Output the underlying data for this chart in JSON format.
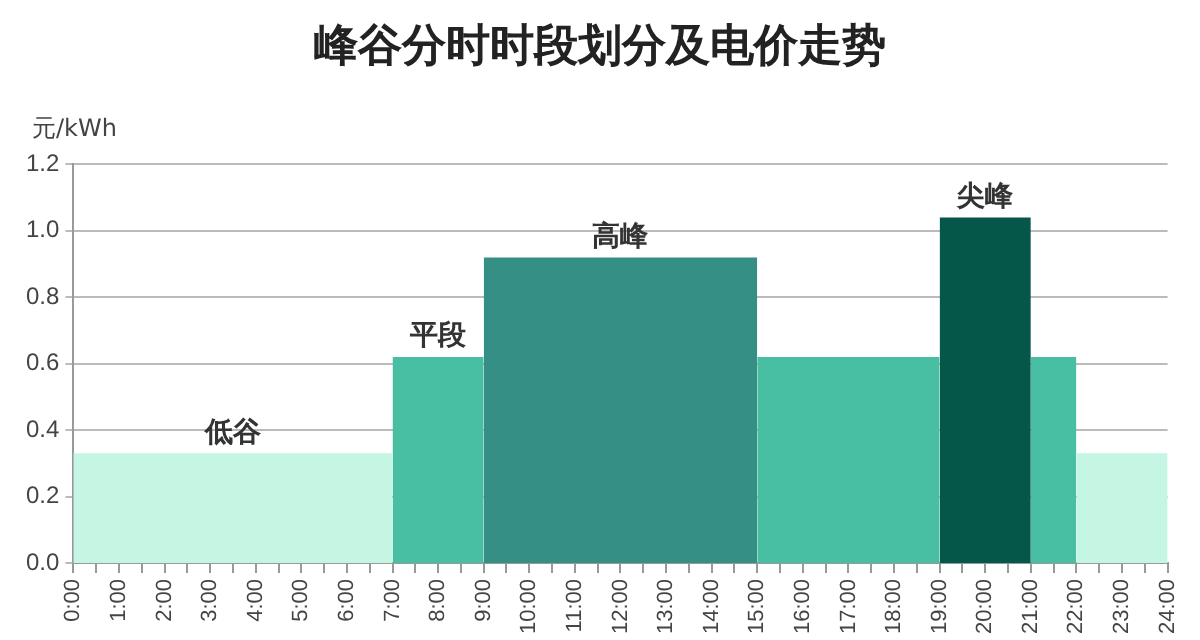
{
  "chart_data": {
    "type": "area",
    "title": "峰谷分时时段划分及电价走势",
    "ylabel": "元/kWh",
    "series": [
      {
        "name": "低谷",
        "color": "#c5f5e3",
        "x": [
          0,
          7
        ],
        "values": [
          0.33,
          0.33
        ]
      },
      {
        "color": "#c5f5e3",
        "x": [
          22,
          24
        ],
        "values": [
          0.33,
          0.33
        ]
      },
      {
        "name": "平段",
        "color": "#48bfa3",
        "x": [
          7,
          9
        ],
        "values": [
          0.62,
          0.62
        ]
      },
      {
        "color": "#48bfa3",
        "x": [
          15,
          19
        ],
        "values": [
          0.62,
          0.62
        ]
      },
      {
        "color": "#48bfa3",
        "x": [
          21,
          22
        ],
        "values": [
          0.62,
          0.62
        ]
      },
      {
        "name": "高峰",
        "color": "#358f85",
        "x": [
          9,
          15
        ],
        "values": [
          0.92,
          0.92
        ]
      },
      {
        "name": "尖峰",
        "color": "#05574a",
        "x": [
          19,
          21
        ],
        "values": [
          1.04,
          1.04
        ]
      }
    ],
    "xlim": [
      0,
      24
    ],
    "xticks": [
      {
        "value": 0,
        "label": "0:00"
      },
      {
        "value": 0.5,
        "label": null
      },
      {
        "value": 1,
        "label": "1:00"
      },
      {
        "value": 1.5,
        "label": null
      },
      {
        "value": 2,
        "label": "2:00"
      },
      {
        "value": 2.5,
        "label": null
      },
      {
        "value": 3,
        "label": "3:00"
      },
      {
        "value": 3.5,
        "label": null
      },
      {
        "value": 4,
        "label": "4:00"
      },
      {
        "value": 4.5,
        "label": null
      },
      {
        "value": 5,
        "label": "5:00"
      },
      {
        "value": 5.5,
        "label": null
      },
      {
        "value": 6,
        "label": "6:00"
      },
      {
        "value": 6.5,
        "label": null
      },
      {
        "value": 7,
        "label": "7:00"
      },
      {
        "value": 7.5,
        "label": null
      },
      {
        "value": 8,
        "label": "8:00"
      },
      {
        "value": 8.5,
        "label": null
      },
      {
        "value": 9,
        "label": "9:00"
      },
      {
        "value": 9.5,
        "label": null
      },
      {
        "value": 10,
        "label": "10:00"
      },
      {
        "value": 10.5,
        "label": null
      },
      {
        "value": 11,
        "label": "11:00"
      },
      {
        "value": 11.5,
        "label": null
      },
      {
        "value": 12,
        "label": "12:00"
      },
      {
        "value": 12.5,
        "label": null
      },
      {
        "value": 13,
        "label": "13:00"
      },
      {
        "value": 13.5,
        "label": null
      },
      {
        "value": 14,
        "label": "14:00"
      },
      {
        "value": 14.5,
        "label": null
      },
      {
        "value": 15,
        "label": "15:00"
      },
      {
        "value": 15.5,
        "label": null
      },
      {
        "value": 16,
        "label": "16:00"
      },
      {
        "value": 16.5,
        "label": null
      },
      {
        "value": 17,
        "label": "17:00"
      },
      {
        "value": 17.5,
        "label": null
      },
      {
        "value": 18,
        "label": "18:00"
      },
      {
        "value": 18.5,
        "label": null
      },
      {
        "value": 19,
        "label": "19:00"
      },
      {
        "value": 19.5,
        "label": null
      },
      {
        "value": 20,
        "label": "20:00"
      },
      {
        "value": 20.5,
        "label": null
      },
      {
        "value": 21,
        "label": "21:00"
      },
      {
        "value": 21.5,
        "label": null
      },
      {
        "value": 22,
        "label": "22:00"
      },
      {
        "value": 22.5,
        "label": null
      },
      {
        "value": 23,
        "label": "23:00"
      },
      {
        "value": 23.5,
        "label": null
      },
      {
        "value": 24,
        "label": "24:00"
      }
    ],
    "ylim": [
      0,
      1.2
    ],
    "yticks": [
      {
        "value": 0,
        "label": "0.0"
      },
      {
        "value": 0.2,
        "label": "0.2"
      },
      {
        "value": 0.4,
        "label": "0.4"
      },
      {
        "value": 0.6,
        "label": "0.6"
      },
      {
        "value": 0.8,
        "label": "0.8"
      },
      {
        "value": 1,
        "label": "1.0"
      },
      {
        "value": 1.2,
        "label": "1.2"
      }
    ],
    "grid": "y",
    "legend": false
  }
}
